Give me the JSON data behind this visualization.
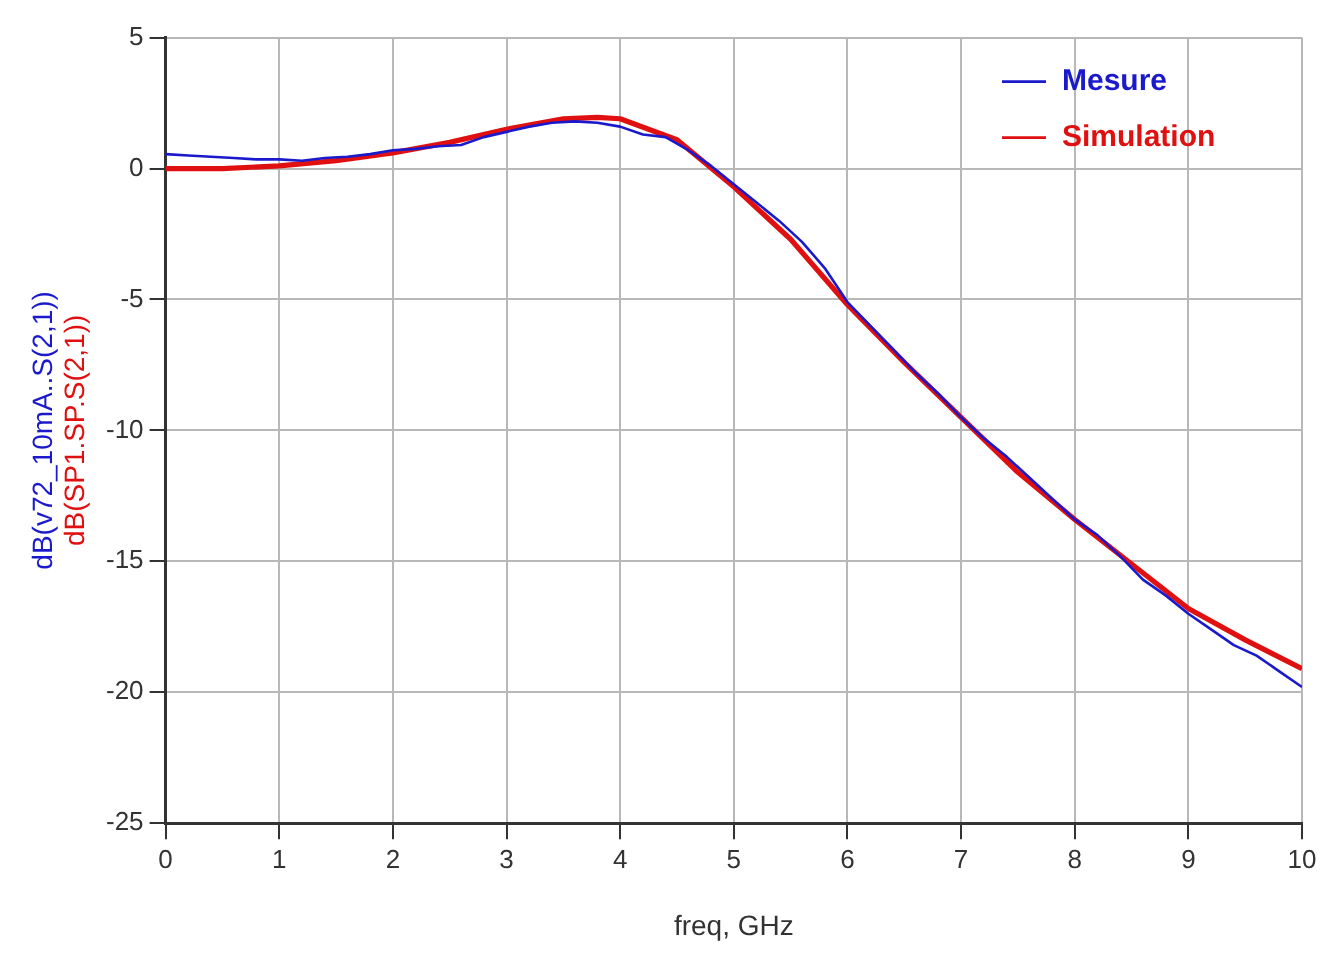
{
  "chart_data": {
    "type": "line",
    "xlabel": "freq, GHz",
    "ylabel": "dB(v72_10mA..S(2,1))",
    "annotations": [
      "dB(SP1.SP.S(2,1))"
    ],
    "xlim": [
      0,
      10
    ],
    "xticks": [
      0,
      1,
      2,
      3,
      4,
      5,
      6,
      7,
      8,
      9,
      10
    ],
    "ylim": [
      -25,
      5
    ],
    "yticks": [
      -25,
      -20,
      -15,
      -10,
      -5,
      0,
      5
    ],
    "grid": true,
    "legend": "top right",
    "marker": "none",
    "line_style": "solid",
    "series": [
      {
        "name": "Mesure",
        "color": "#1a1acc",
        "x": [
          0,
          0.2,
          0.4,
          0.6,
          0.8,
          1,
          1.2,
          1.4,
          1.6,
          1.8,
          2,
          2.2,
          2.4,
          2.6,
          2.8,
          3,
          3.2,
          3.4,
          3.6,
          3.8,
          4,
          4.2,
          4.4,
          4.6,
          4.8,
          5,
          5.2,
          5.4,
          5.6,
          5.8,
          6,
          6.2,
          6.4,
          6.6,
          6.8,
          7,
          7.2,
          7.4,
          7.6,
          7.8,
          8,
          8.2,
          8.4,
          8.6,
          8.8,
          9,
          9.2,
          9.4,
          9.6,
          9.8,
          10
        ],
        "values": [
          0.55,
          0.5,
          0.45,
          0.4,
          0.35,
          0.35,
          0.3,
          0.4,
          0.45,
          0.55,
          0.7,
          0.75,
          0.85,
          0.9,
          1.2,
          1.4,
          1.6,
          1.75,
          1.8,
          1.75,
          1.6,
          1.3,
          1.2,
          0.7,
          0.1,
          -0.6,
          -1.3,
          -2.0,
          -2.8,
          -3.8,
          -5.1,
          -6.0,
          -6.9,
          -7.8,
          -8.6,
          -9.5,
          -10.3,
          -11.0,
          -11.8,
          -12.6,
          -13.4,
          -14.0,
          -14.8,
          -15.7,
          -16.3,
          -17.0,
          -17.6,
          -18.2,
          -18.6,
          -19.2,
          -19.8
        ]
      },
      {
        "name": "Simulation",
        "color": "#e01010",
        "x": [
          0,
          0.5,
          1,
          1.5,
          2,
          2.5,
          3,
          3.5,
          3.8,
          4,
          4.5,
          5,
          5.5,
          6,
          6.5,
          7,
          7.5,
          8,
          8.5,
          9,
          9.5,
          10
        ],
        "values": [
          0,
          0,
          0.1,
          0.3,
          0.6,
          1.0,
          1.5,
          1.9,
          1.95,
          1.9,
          1.1,
          -0.7,
          -2.7,
          -5.2,
          -7.4,
          -9.5,
          -11.6,
          -13.4,
          -15.1,
          -16.8,
          -18.0,
          -19.1
        ]
      }
    ]
  }
}
